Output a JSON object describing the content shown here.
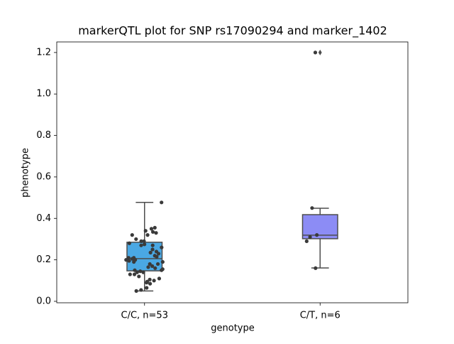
{
  "chart_data": {
    "type": "box",
    "title": "markerQTL plot for SNP rs17090294 and marker_1402",
    "x_label": "genotype",
    "y_label": "phenotype",
    "categories": [
      "C/C, n=53",
      "C/T, n=6"
    ],
    "colors": [
      "#4aa8e4",
      "#8c8cf5"
    ],
    "point_color": "#3a3a3a",
    "boxes": [
      {
        "whislo": 0.05,
        "q1": 0.147,
        "med": 0.206,
        "q3": 0.285,
        "whishi": 0.477,
        "fliers": []
      },
      {
        "whislo": 0.161,
        "q1": 0.302,
        "med": 0.319,
        "q3": 0.418,
        "whishi": 0.449,
        "fliers": [
          1.2
        ]
      }
    ],
    "points": [
      [
        0.477,
        0.34,
        0.355,
        0.35,
        0.335,
        0.33,
        0.32,
        0.32,
        0.3,
        0.29,
        0.29,
        0.28,
        0.275,
        0.27,
        0.27,
        0.26,
        0.25,
        0.24,
        0.235,
        0.23,
        0.22,
        0.215,
        0.21,
        0.21,
        0.205,
        0.2,
        0.2,
        0.195,
        0.19,
        0.19,
        0.18,
        0.18,
        0.17,
        0.165,
        0.16,
        0.155,
        0.15,
        0.15,
        0.145,
        0.14,
        0.14,
        0.13,
        0.13,
        0.12,
        0.11,
        0.105,
        0.1,
        0.095,
        0.09,
        0.085,
        0.065,
        0.055,
        0.05
      ],
      [
        1.2,
        0.45,
        0.31,
        0.29,
        0.32,
        0.16
      ]
    ],
    "ylim": [
      -0.007,
      1.251
    ],
    "yticks": [
      {
        "value": 0,
        "label": "0.0"
      },
      0.2,
      0.4,
      0.6,
      0.8,
      {
        "value": 1,
        "label": "1.0"
      },
      1.2
    ]
  }
}
